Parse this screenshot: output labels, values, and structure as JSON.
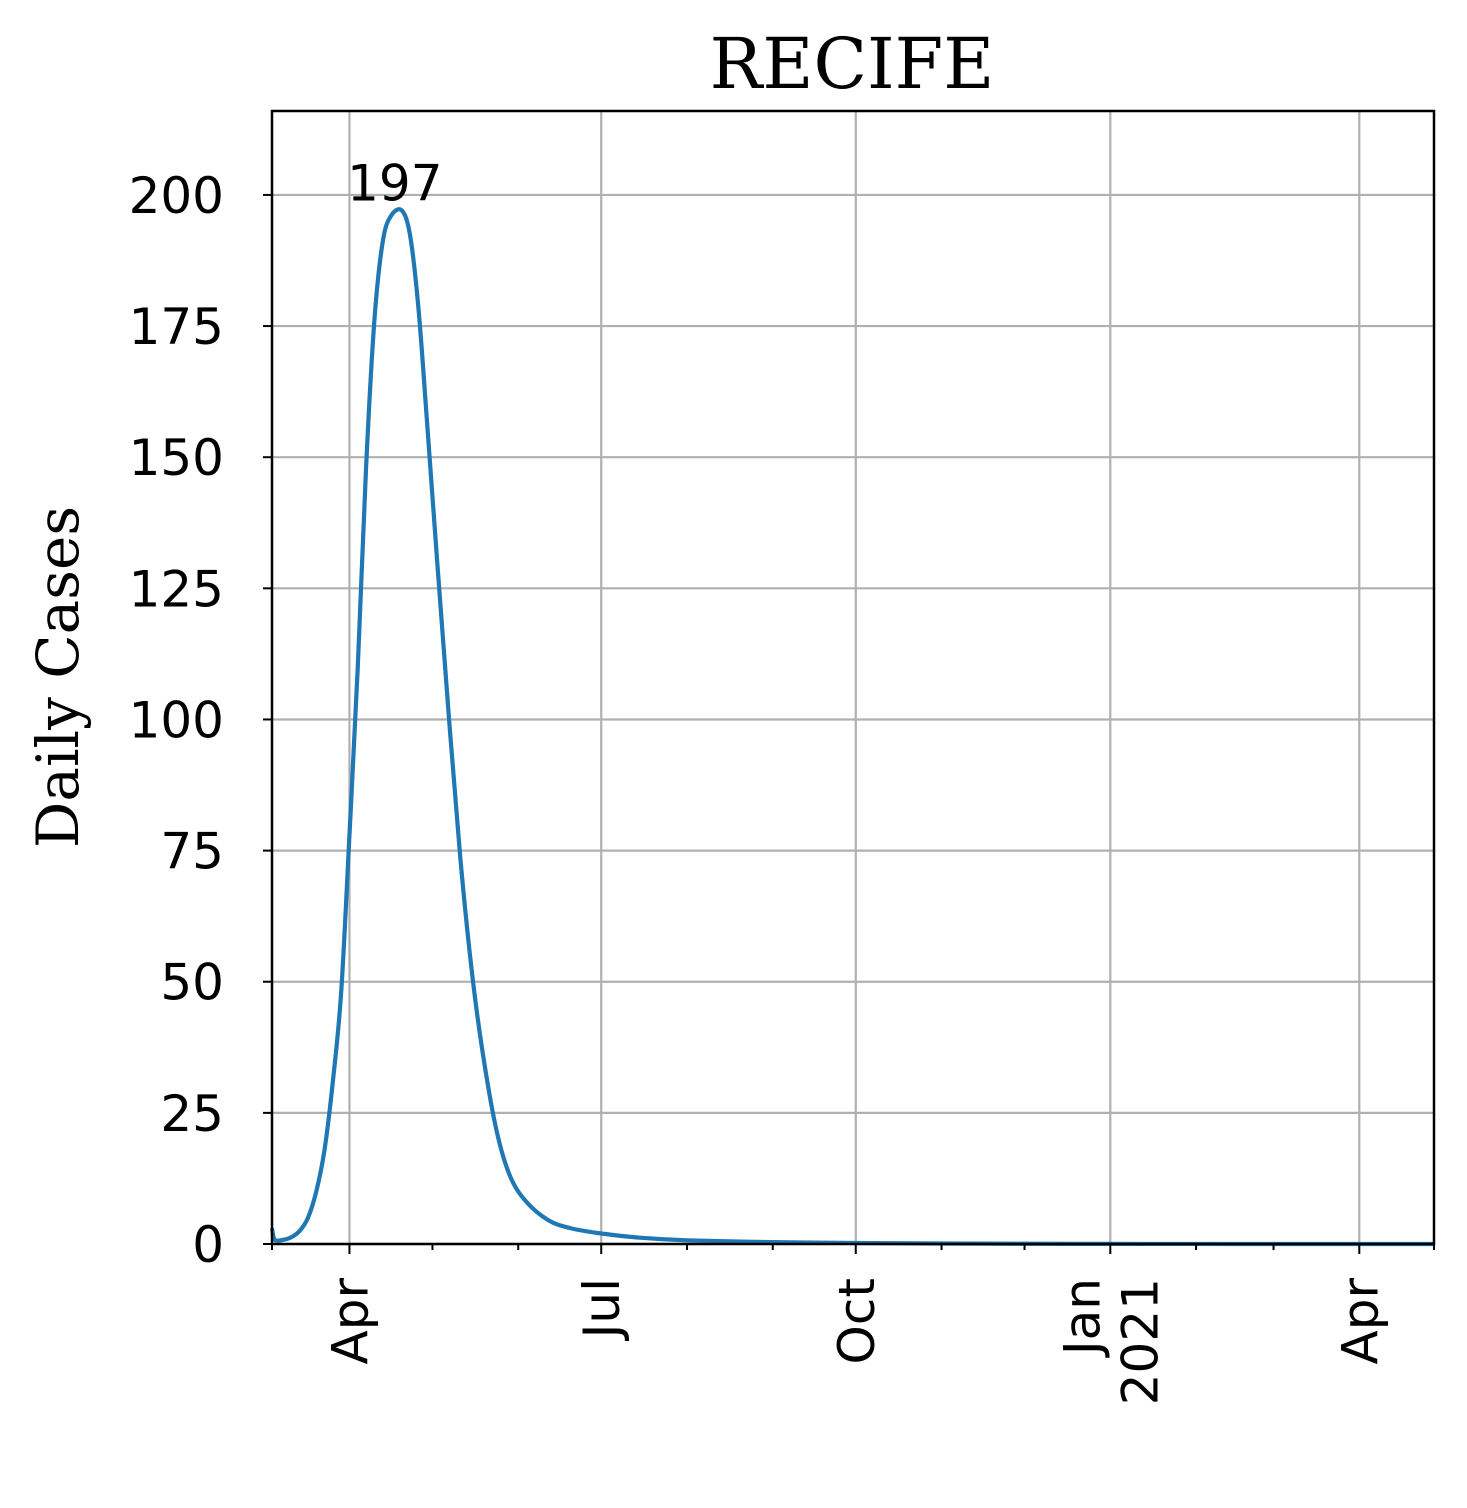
{
  "chart_data": {
    "type": "line",
    "title": "RECIFE",
    "ylabel": "Daily Cases",
    "xlabel": "",
    "ylim": [
      0,
      216
    ],
    "xlim": [
      "2020-03-04",
      "2021-04-28"
    ],
    "grid": true,
    "y_ticks": [
      0,
      25,
      50,
      75,
      100,
      125,
      150,
      175,
      200
    ],
    "x_ticks": [
      {
        "date": "2020-04-01",
        "lines": [
          "Apr"
        ]
      },
      {
        "date": "2020-07-01",
        "lines": [
          "Jul"
        ]
      },
      {
        "date": "2020-10-01",
        "lines": [
          "Oct"
        ]
      },
      {
        "date": "2021-01-01",
        "lines": [
          "Jan",
          "2021"
        ]
      },
      {
        "date": "2021-04-01",
        "lines": [
          "Apr"
        ]
      }
    ],
    "x_minor_ticks": [
      "2020-03-04",
      "2020-05-01",
      "2020-06-01",
      "2020-08-01",
      "2020-09-01",
      "2020-11-01",
      "2020-12-01",
      "2021-02-01",
      "2021-03-01",
      "2021-04-28"
    ],
    "annotation": {
      "text": "197",
      "date": "2020-04-21",
      "value": 197
    },
    "series": [
      {
        "color": "#1f77b4",
        "points": [
          [
            "2020-03-04",
            3
          ],
          [
            "2020-03-05",
            0.8
          ],
          [
            "2020-03-08",
            0.8
          ],
          [
            "2020-03-11",
            1.3
          ],
          [
            "2020-03-14",
            2.5
          ],
          [
            "2020-03-17",
            5
          ],
          [
            "2020-03-20",
            10
          ],
          [
            "2020-03-23",
            18
          ],
          [
            "2020-03-26",
            31
          ],
          [
            "2020-03-29",
            48
          ],
          [
            "2020-04-01",
            78
          ],
          [
            "2020-04-04",
            110
          ],
          [
            "2020-04-07",
            148
          ],
          [
            "2020-04-10",
            176
          ],
          [
            "2020-04-13",
            191
          ],
          [
            "2020-04-16",
            196
          ],
          [
            "2020-04-20",
            197
          ],
          [
            "2020-04-23",
            192
          ],
          [
            "2020-04-26",
            178
          ],
          [
            "2020-04-29",
            157
          ],
          [
            "2020-05-03",
            128
          ],
          [
            "2020-05-07",
            100
          ],
          [
            "2020-05-11",
            74
          ],
          [
            "2020-05-15",
            53
          ],
          [
            "2020-05-19",
            37
          ],
          [
            "2020-05-24",
            22
          ],
          [
            "2020-05-29",
            13
          ],
          [
            "2020-06-04",
            8
          ],
          [
            "2020-06-12",
            4.5
          ],
          [
            "2020-06-20",
            3
          ],
          [
            "2020-07-01",
            2
          ],
          [
            "2020-07-15",
            1.2
          ],
          [
            "2020-08-01",
            0.7
          ],
          [
            "2020-09-01",
            0.35
          ],
          [
            "2020-10-01",
            0.2
          ],
          [
            "2020-11-01",
            0.1
          ],
          [
            "2020-12-01",
            0.05
          ],
          [
            "2021-01-01",
            0.02
          ],
          [
            "2021-02-01",
            0.01
          ],
          [
            "2021-03-01",
            0.005
          ],
          [
            "2021-04-01",
            0
          ],
          [
            "2021-04-28",
            0
          ]
        ]
      }
    ]
  }
}
